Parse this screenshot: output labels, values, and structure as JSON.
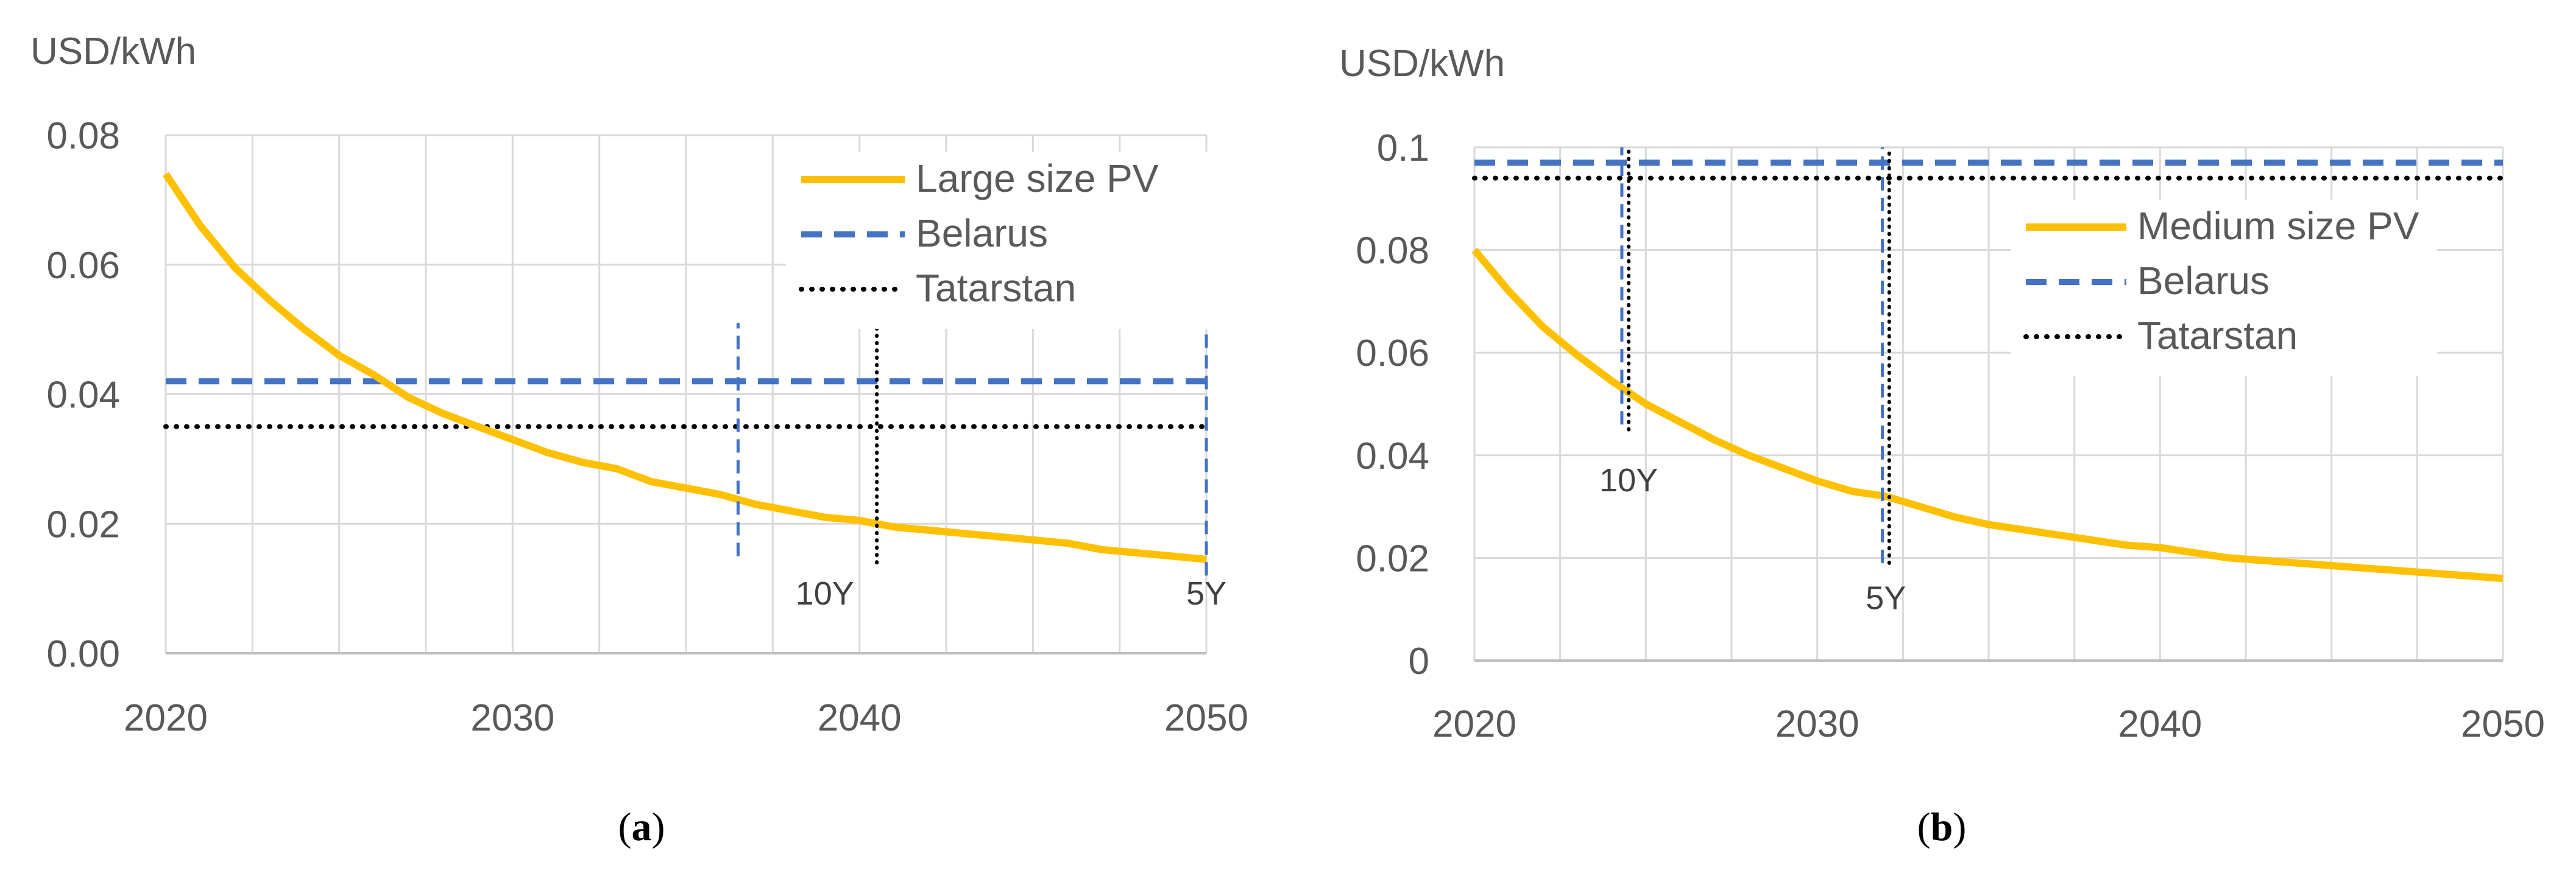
{
  "chart_data": [
    {
      "type": "line",
      "panel": "a",
      "ylabel": "USD/kWh",
      "xlim": [
        2020,
        2050
      ],
      "ylim": [
        0,
        0.08
      ],
      "xticks": [
        "2020",
        "2030",
        "2040",
        "2050"
      ],
      "yticks": [
        "0.00",
        "0.02",
        "0.04",
        "0.06",
        "0.08"
      ],
      "x": [
        2020,
        2021,
        2022,
        2023,
        2024,
        2025,
        2026,
        2027,
        2028,
        2029,
        2030,
        2031,
        2032,
        2033,
        2034,
        2035,
        2036,
        2037,
        2038,
        2039,
        2040,
        2041,
        2042,
        2043,
        2044,
        2045,
        2046,
        2047,
        2048,
        2049,
        2050
      ],
      "series": [
        {
          "name": "Large size PV",
          "style": "solid",
          "color": "#FFC000",
          "values": [
            0.074,
            0.066,
            0.0595,
            0.0545,
            0.05,
            0.046,
            0.043,
            0.0395,
            0.037,
            0.035,
            0.033,
            0.031,
            0.0295,
            0.0285,
            0.0265,
            0.0255,
            0.0245,
            0.023,
            0.022,
            0.021,
            0.0205,
            0.0195,
            0.019,
            0.0185,
            0.018,
            0.0175,
            0.017,
            0.016,
            0.0155,
            0.015,
            0.0145
          ]
        },
        {
          "name": "Belarus",
          "style": "dashed",
          "color": "#4472C4",
          "constant": 0.042
        },
        {
          "name": "Tatarstan",
          "style": "dotted",
          "color": "#000000",
          "constant": 0.035
        }
      ],
      "vlines": [
        {
          "x": 2036.5,
          "style": "dashed",
          "color": "#4472C4",
          "from": 0.015,
          "to": 0.051
        },
        {
          "x": 2040.5,
          "style": "dotted",
          "color": "#000000",
          "from": 0.014,
          "to": 0.051
        },
        {
          "x": 2050,
          "style": "dashed",
          "color": "#4472C4",
          "from": 0.012,
          "to": 0.051
        }
      ],
      "annotations": [
        {
          "text": "10Y",
          "x": 2039.0,
          "y": 0.0075
        },
        {
          "text": "5Y",
          "x": 2050.0,
          "y": 0.0075
        }
      ],
      "legend_position": "top-right",
      "caption": "(a)"
    },
    {
      "type": "line",
      "panel": "b",
      "ylabel": "USD/kWh",
      "xlim": [
        2020,
        2050
      ],
      "ylim": [
        0,
        0.1
      ],
      "xticks": [
        "2020",
        "2030",
        "2040",
        "2050"
      ],
      "yticks": [
        "0",
        "0.02",
        "0.04",
        "0.06",
        "0.08",
        "0.1"
      ],
      "x": [
        2020,
        2021,
        2022,
        2023,
        2024,
        2025,
        2026,
        2027,
        2028,
        2029,
        2030,
        2031,
        2032,
        2033,
        2034,
        2035,
        2036,
        2037,
        2038,
        2039,
        2040,
        2041,
        2042,
        2043,
        2044,
        2045,
        2046,
        2047,
        2048,
        2049,
        2050
      ],
      "series": [
        {
          "name": "Medium size PV",
          "style": "solid",
          "color": "#FFC000",
          "values": [
            0.08,
            0.072,
            0.065,
            0.0595,
            0.0545,
            0.05,
            0.0465,
            0.043,
            0.04,
            0.0375,
            0.035,
            0.033,
            0.032,
            0.03,
            0.028,
            0.0265,
            0.0255,
            0.0245,
            0.0235,
            0.0225,
            0.022,
            0.021,
            0.02,
            0.0195,
            0.019,
            0.0185,
            0.018,
            0.0175,
            0.017,
            0.0165,
            0.016
          ]
        },
        {
          "name": "Belarus",
          "style": "dashed",
          "color": "#4472C4",
          "constant": 0.097
        },
        {
          "name": "Tatarstan",
          "style": "dotted",
          "color": "#000000",
          "constant": 0.094
        }
      ],
      "vlines": [
        {
          "x": 2024.3,
          "style": "dashed",
          "color": "#4472C4",
          "from": 0.046,
          "to": 0.1
        },
        {
          "x": 2024.5,
          "style": "dotted",
          "color": "#000000",
          "from": 0.045,
          "to": 0.1
        },
        {
          "x": 2031.9,
          "style": "dashed",
          "color": "#4472C4",
          "from": 0.019,
          "to": 0.1
        },
        {
          "x": 2032.1,
          "style": "dotted",
          "color": "#000000",
          "from": 0.019,
          "to": 0.1
        }
      ],
      "annotations": [
        {
          "text": "10Y",
          "x": 2024.5,
          "y": 0.033
        },
        {
          "text": "5Y",
          "x": 2032.0,
          "y": 0.01
        }
      ],
      "legend_position": "top-right",
      "caption": "(b)"
    }
  ]
}
